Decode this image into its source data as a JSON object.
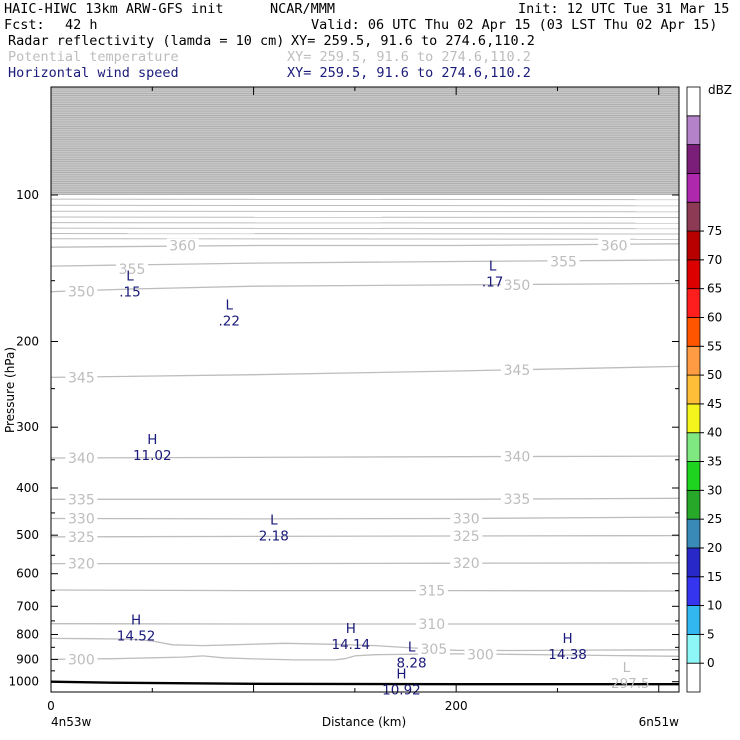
{
  "header": {
    "model": "HAIC-HIWC 13km ARW-GFS init",
    "org": "NCAR/MMM",
    "init": "Init: 12 UTC Tue 31 Mar 15",
    "fcst_label": "Fcst:",
    "fcst_value": "42 h",
    "valid": "Valid: 06 UTC Thu 02 Apr 15 (03 LST Thu 02 Apr 15)",
    "fields": [
      {
        "name": "Radar reflectivity (lamda = 10 cm)",
        "xy": "XY= 259.5, 91.6 to 274.6,110.2",
        "color": "#000000"
      },
      {
        "name": "Potential temperature",
        "xy": "XY= 259.5, 91.6 to 274.6,110.2",
        "color": "#bdbdbd"
      },
      {
        "name": "Horizontal wind speed",
        "xy": "XY= 259.5, 91.6 to 274.6,110.2",
        "color": "#1a1a7a"
      }
    ]
  },
  "chart_data": {
    "type": "cross-section",
    "ylabel": "Pressure (hPa)",
    "xlabel": "Distance (km)",
    "y_scale": "log",
    "ylim": [
      1050,
      60
    ],
    "xlim": [
      0,
      310
    ],
    "y_ticks": [
      "100",
      "200",
      "300",
      "400",
      "500",
      "600",
      "700",
      "800",
      "900",
      "1000"
    ],
    "x_ticks": [
      {
        "x": 0,
        "label": "0"
      },
      {
        "x": 200,
        "label": "200"
      }
    ],
    "x_end_labels": {
      "left": "4n53w",
      "right": "6n51w"
    },
    "terrain_surface": [
      [
        0,
        1000
      ],
      [
        30,
        1005
      ],
      [
        100,
        1010
      ],
      [
        200,
        1012
      ],
      [
        310,
        1012
      ]
    ],
    "theta_contours": [
      {
        "level": 300,
        "points": [
          [
            0,
            900
          ],
          [
            30,
            897
          ],
          [
            50,
            893
          ],
          [
            65,
            890
          ],
          [
            75,
            885
          ],
          [
            85,
            893
          ],
          [
            100,
            898
          ],
          [
            120,
            902
          ],
          [
            140,
            902
          ],
          [
            145,
            897
          ],
          [
            150,
            885
          ],
          [
            160,
            880
          ],
          [
            180,
            878
          ],
          [
            200,
            877
          ],
          [
            220,
            878
          ],
          [
            250,
            881
          ],
          [
            280,
            884
          ],
          [
            310,
            887
          ]
        ]
      },
      {
        "level": 305,
        "points": [
          [
            0,
            815
          ],
          [
            20,
            816
          ],
          [
            40,
            818
          ],
          [
            50,
            825
          ],
          [
            60,
            840
          ],
          [
            75,
            843
          ],
          [
            90,
            840
          ],
          [
            115,
            834
          ],
          [
            140,
            838
          ],
          [
            160,
            843
          ],
          [
            180,
            853
          ],
          [
            200,
            862
          ],
          [
            230,
            863
          ],
          [
            260,
            861
          ],
          [
            310,
            860
          ]
        ]
      },
      {
        "level": 310,
        "points": [
          [
            0,
            760
          ],
          [
            100,
            761
          ],
          [
            200,
            761
          ],
          [
            310,
            761
          ]
        ]
      },
      {
        "level": 315,
        "points": [
          [
            0,
            648
          ],
          [
            100,
            650
          ],
          [
            200,
            650
          ],
          [
            310,
            651
          ]
        ]
      },
      {
        "level": 320,
        "points": [
          [
            0,
            572
          ],
          [
            100,
            572
          ],
          [
            200,
            571
          ],
          [
            310,
            570
          ]
        ]
      },
      {
        "level": 325,
        "points": [
          [
            0,
            504
          ],
          [
            100,
            503
          ],
          [
            200,
            502
          ],
          [
            310,
            501
          ]
        ]
      },
      {
        "level": 330,
        "points": [
          [
            0,
            462
          ],
          [
            100,
            463
          ],
          [
            200,
            462
          ],
          [
            310,
            459
          ]
        ]
      },
      {
        "level": 335,
        "points": [
          [
            0,
            422
          ],
          [
            100,
            422
          ],
          [
            200,
            422
          ],
          [
            310,
            420
          ]
        ]
      },
      {
        "level": 340,
        "points": [
          [
            0,
            347
          ],
          [
            100,
            346
          ],
          [
            200,
            345
          ],
          [
            310,
            344
          ]
        ]
      },
      {
        "level": 345,
        "points": [
          [
            0,
            237
          ],
          [
            100,
            234
          ],
          [
            200,
            230
          ],
          [
            310,
            225
          ]
        ]
      },
      {
        "level": 350,
        "points": [
          [
            0,
            158
          ],
          [
            40,
            156
          ],
          [
            100,
            154
          ],
          [
            200,
            153
          ],
          [
            310,
            152
          ]
        ]
      },
      {
        "level": 355,
        "points": [
          [
            0,
            140
          ],
          [
            100,
            138
          ],
          [
            200,
            137
          ],
          [
            310,
            136
          ]
        ]
      },
      {
        "level": 360,
        "points": [
          [
            0,
            128
          ],
          [
            100,
            127
          ],
          [
            200,
            127
          ],
          [
            310,
            126
          ]
        ]
      }
    ],
    "theta_labels": [
      {
        "text": "300",
        "x": 15,
        "p": 900
      },
      {
        "text": "300",
        "x": 212,
        "p": 879
      },
      {
        "text": "305",
        "x": 189,
        "p": 857
      },
      {
        "text": "310",
        "x": 188,
        "p": 761
      },
      {
        "text": "315",
        "x": 188,
        "p": 650
      },
      {
        "text": "320",
        "x": 15,
        "p": 572
      },
      {
        "text": "320",
        "x": 205,
        "p": 571
      },
      {
        "text": "325",
        "x": 15,
        "p": 504
      },
      {
        "text": "325",
        "x": 205,
        "p": 502
      },
      {
        "text": "330",
        "x": 15,
        "p": 462
      },
      {
        "text": "330",
        "x": 205,
        "p": 462
      },
      {
        "text": "335",
        "x": 15,
        "p": 422
      },
      {
        "text": "335",
        "x": 230,
        "p": 421
      },
      {
        "text": "340",
        "x": 15,
        "p": 347
      },
      {
        "text": "340",
        "x": 230,
        "p": 345
      },
      {
        "text": "345",
        "x": 15,
        "p": 237
      },
      {
        "text": "345",
        "x": 230,
        "p": 229
      },
      {
        "text": "350",
        "x": 15,
        "p": 158
      },
      {
        "text": "350",
        "x": 230,
        "p": 153
      },
      {
        "text": "355",
        "x": 40,
        "p": 142
      },
      {
        "text": "355",
        "x": 253,
        "p": 137
      },
      {
        "text": "360",
        "x": 65,
        "p": 127
      },
      {
        "text": "360",
        "x": 278,
        "p": 127
      }
    ],
    "wind_extrema": [
      {
        "type": "L",
        "value": ".15",
        "x": 39,
        "p": 150
      },
      {
        "type": "L",
        "value": ".22",
        "x": 88,
        "p": 172
      },
      {
        "type": "L",
        "value": ".17",
        "x": 218,
        "p": 143
      },
      {
        "type": "H",
        "value": "11.02",
        "x": 50,
        "p": 325
      },
      {
        "type": "L",
        "value": "2.18",
        "x": 110,
        "p": 475
      },
      {
        "type": "H",
        "value": "14.52",
        "x": 42,
        "p": 763
      },
      {
        "type": "H",
        "value": "14.14",
        "x": 148,
        "p": 795
      },
      {
        "type": "H",
        "value": "14.38",
        "x": 255,
        "p": 832
      },
      {
        "type": "L",
        "value": "8.28",
        "x": 178,
        "p": 867
      },
      {
        "type": "H",
        "value": "10.92",
        "x": 173,
        "p": 985
      }
    ],
    "theta_extrema": [
      {
        "type": "L",
        "value": "297.5",
        "x": 284,
        "p": 955
      }
    ],
    "colorbar": {
      "unit": "dBZ",
      "levels": [
        "0",
        "5",
        "10",
        "15",
        "20",
        "25",
        "30",
        "35",
        "40",
        "45",
        "50",
        "55",
        "60",
        "65",
        "70",
        "75"
      ],
      "colors": [
        "#ffffff",
        "#8df6f6",
        "#33b7f0",
        "#3535ef",
        "#2828c8",
        "#3a8ab8",
        "#28a828",
        "#1fd41f",
        "#80e880",
        "#f5f51e",
        "#ffbe37",
        "#ff9b42",
        "#ff5500",
        "#ff1e1e",
        "#dc0000",
        "#b90000",
        "#8d3a55",
        "#ae28ae",
        "#7a1e7a",
        "#b482c8",
        "#ffffff"
      ]
    },
    "colors": {
      "theta": "#bdbdbd",
      "wind": "#1a1a7a",
      "terrain": "#000000",
      "top_shading": "#c8c8c8"
    }
  }
}
